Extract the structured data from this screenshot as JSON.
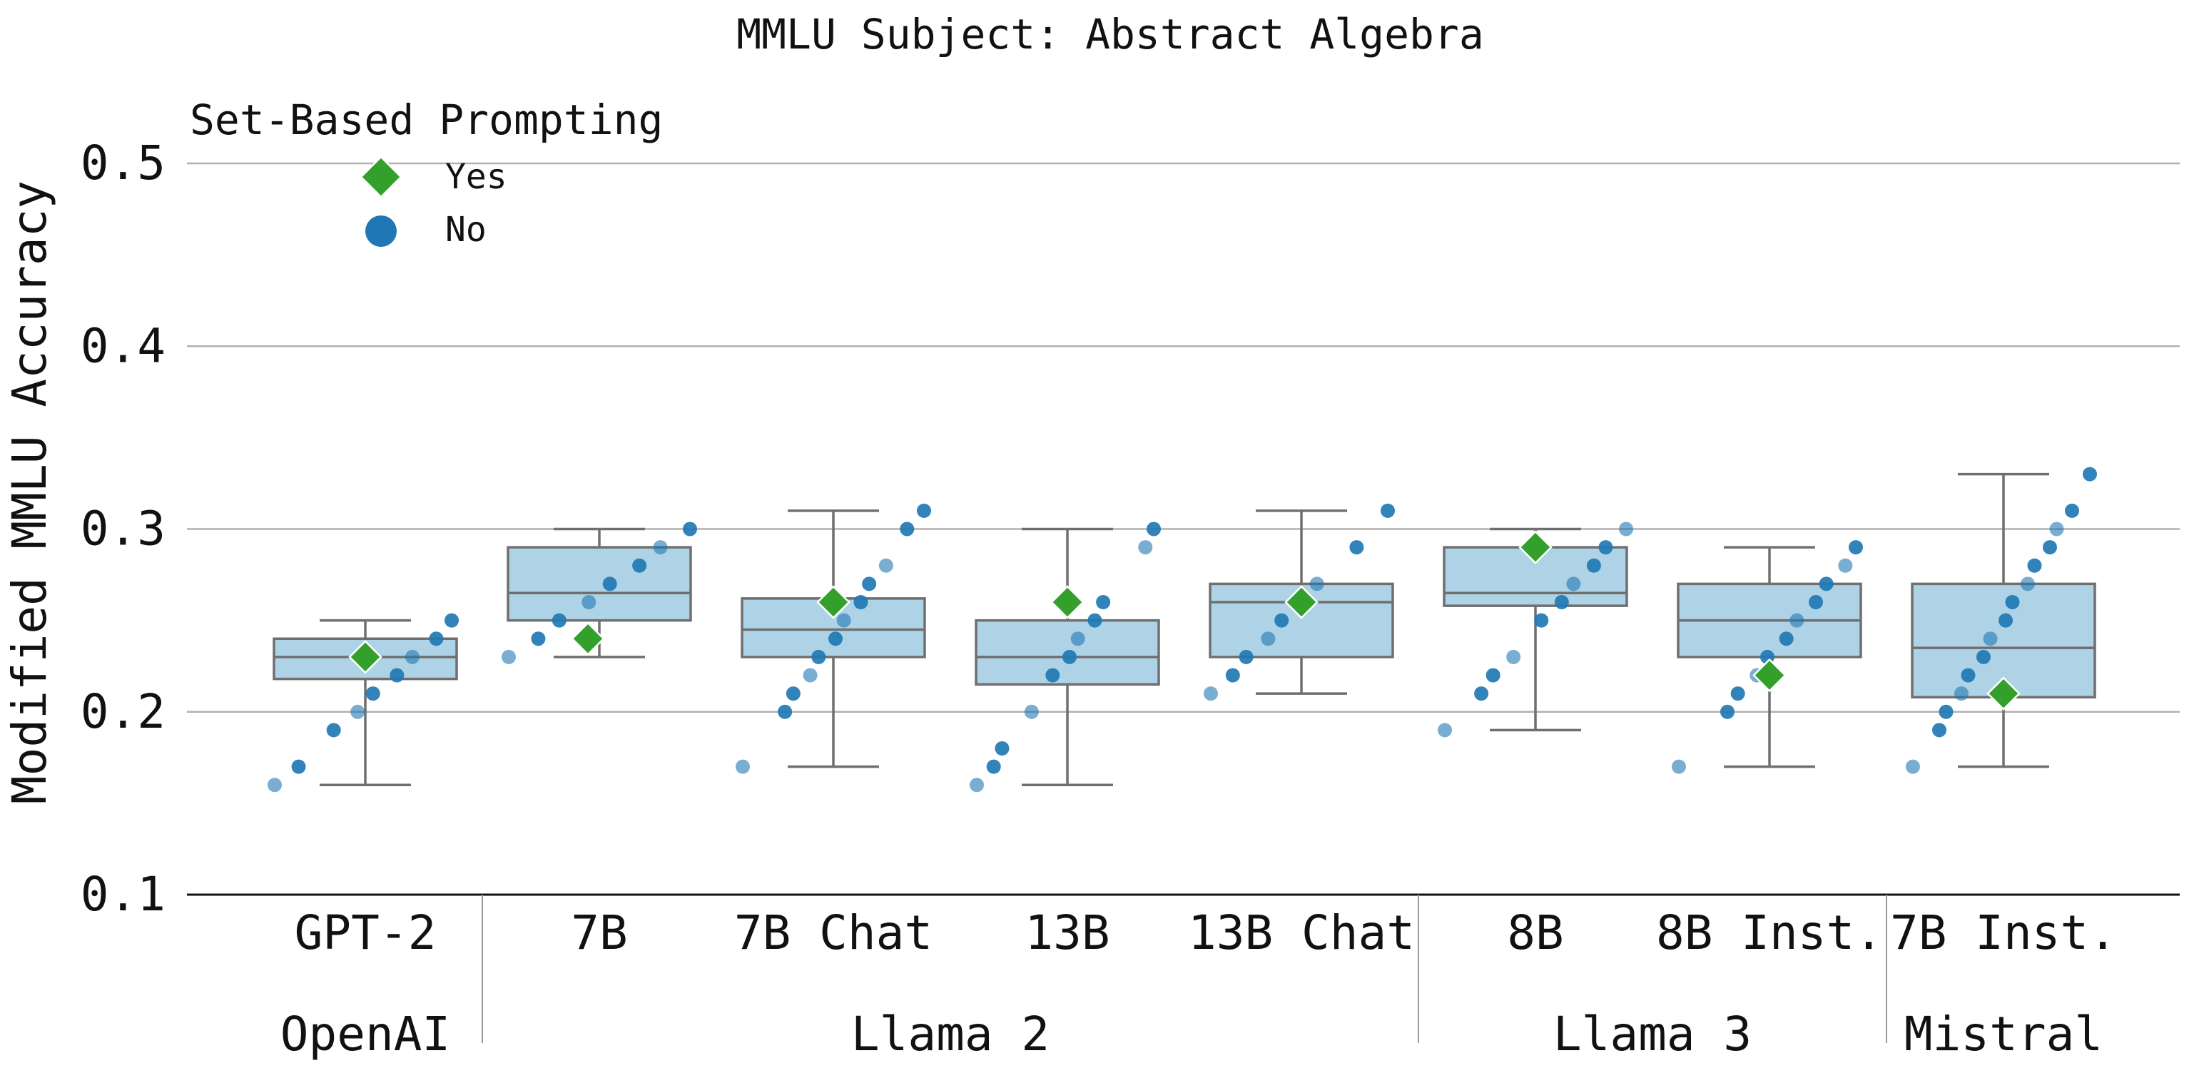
{
  "chart_data": {
    "type": "box",
    "title": "MMLU Subject: Abstract Algebra",
    "ylabel": "Modified MMLU Accuracy",
    "ylim": [
      0.1,
      0.5
    ],
    "yticks": [
      "0.1",
      "0.2",
      "0.3",
      "0.4",
      "0.5"
    ],
    "grid": true,
    "legend": {
      "title": "Set-Based Prompting",
      "placement": "top-left",
      "entries": [
        {
          "label": "Yes",
          "marker": "diamond",
          "color": "#33a02c"
        },
        {
          "label": "No",
          "marker": "circle",
          "color": "#1f78b4"
        }
      ]
    },
    "colors": {
      "box_fill": "#a6cee3",
      "box_edge": "#6f6f6f",
      "no_point": "#1f78b4",
      "yes_point": "#33a02c",
      "grid": "#b0b0b0"
    },
    "categories": [
      "GPT-2",
      "7B",
      "7B Chat",
      "13B",
      "13B Chat",
      "8B",
      "8B Inst.",
      "7B Inst."
    ],
    "groups": [
      {
        "label": "OpenAI",
        "members": [
          "GPT-2"
        ]
      },
      {
        "label": "Llama 2",
        "members": [
          "7B",
          "7B Chat",
          "13B",
          "13B Chat"
        ]
      },
      {
        "label": "Llama 3",
        "members": [
          "8B",
          "8B Inst."
        ]
      },
      {
        "label": "Mistral",
        "members": [
          "7B Inst."
        ]
      }
    ],
    "boxes": [
      {
        "category": "GPT-2",
        "whisker_low": 0.16,
        "q1": 0.218,
        "median": 0.23,
        "q3": 0.24,
        "whisker_high": 0.25
      },
      {
        "category": "7B",
        "whisker_low": 0.23,
        "q1": 0.25,
        "median": 0.265,
        "q3": 0.29,
        "whisker_high": 0.3
      },
      {
        "category": "7B Chat",
        "whisker_low": 0.17,
        "q1": 0.23,
        "median": 0.245,
        "q3": 0.262,
        "whisker_high": 0.31
      },
      {
        "category": "13B",
        "whisker_low": 0.16,
        "q1": 0.215,
        "median": 0.23,
        "q3": 0.25,
        "whisker_high": 0.3
      },
      {
        "category": "13B Chat",
        "whisker_low": 0.21,
        "q1": 0.23,
        "median": 0.26,
        "q3": 0.27,
        "whisker_high": 0.31
      },
      {
        "category": "8B",
        "whisker_low": 0.19,
        "q1": 0.258,
        "median": 0.265,
        "q3": 0.29,
        "whisker_high": 0.3
      },
      {
        "category": "8B Inst.",
        "whisker_low": 0.17,
        "q1": 0.23,
        "median": 0.25,
        "q3": 0.27,
        "whisker_high": 0.29
      },
      {
        "category": "7B Inst.",
        "whisker_low": 0.17,
        "q1": 0.208,
        "median": 0.235,
        "q3": 0.27,
        "whisker_high": 0.33
      }
    ],
    "no_points": [
      {
        "category": "GPT-2",
        "values": [
          0.16,
          0.17,
          0.19,
          0.2,
          0.21,
          0.22,
          0.23,
          0.24,
          0.25
        ]
      },
      {
        "category": "7B",
        "values": [
          0.23,
          0.24,
          0.25,
          0.26,
          0.27,
          0.28,
          0.29,
          0.3
        ]
      },
      {
        "category": "7B Chat",
        "values": [
          0.17,
          0.2,
          0.21,
          0.22,
          0.23,
          0.24,
          0.25,
          0.26,
          0.27,
          0.28,
          0.3,
          0.31
        ]
      },
      {
        "category": "13B",
        "values": [
          0.16,
          0.17,
          0.18,
          0.2,
          0.22,
          0.23,
          0.24,
          0.25,
          0.26,
          0.29,
          0.3
        ]
      },
      {
        "category": "13B Chat",
        "values": [
          0.21,
          0.22,
          0.23,
          0.24,
          0.25,
          0.26,
          0.27,
          0.29,
          0.31
        ]
      },
      {
        "category": "8B",
        "values": [
          0.19,
          0.21,
          0.22,
          0.23,
          0.25,
          0.26,
          0.27,
          0.28,
          0.29,
          0.3
        ]
      },
      {
        "category": "8B Inst.",
        "values": [
          0.17,
          0.2,
          0.21,
          0.22,
          0.23,
          0.24,
          0.25,
          0.26,
          0.27,
          0.28,
          0.29
        ]
      },
      {
        "category": "7B Inst.",
        "values": [
          0.17,
          0.19,
          0.2,
          0.21,
          0.22,
          0.23,
          0.24,
          0.25,
          0.26,
          0.27,
          0.28,
          0.29,
          0.3,
          0.31,
          0.33
        ]
      }
    ],
    "yes_points": [
      {
        "category": "GPT-2",
        "value": 0.23
      },
      {
        "category": "7B",
        "value": 0.24
      },
      {
        "category": "7B Chat",
        "value": 0.26
      },
      {
        "category": "13B",
        "value": 0.26
      },
      {
        "category": "13B Chat",
        "value": 0.26
      },
      {
        "category": "8B",
        "value": 0.29
      },
      {
        "category": "8B Inst.",
        "value": 0.22
      },
      {
        "category": "7B Inst.",
        "value": 0.21
      }
    ]
  }
}
